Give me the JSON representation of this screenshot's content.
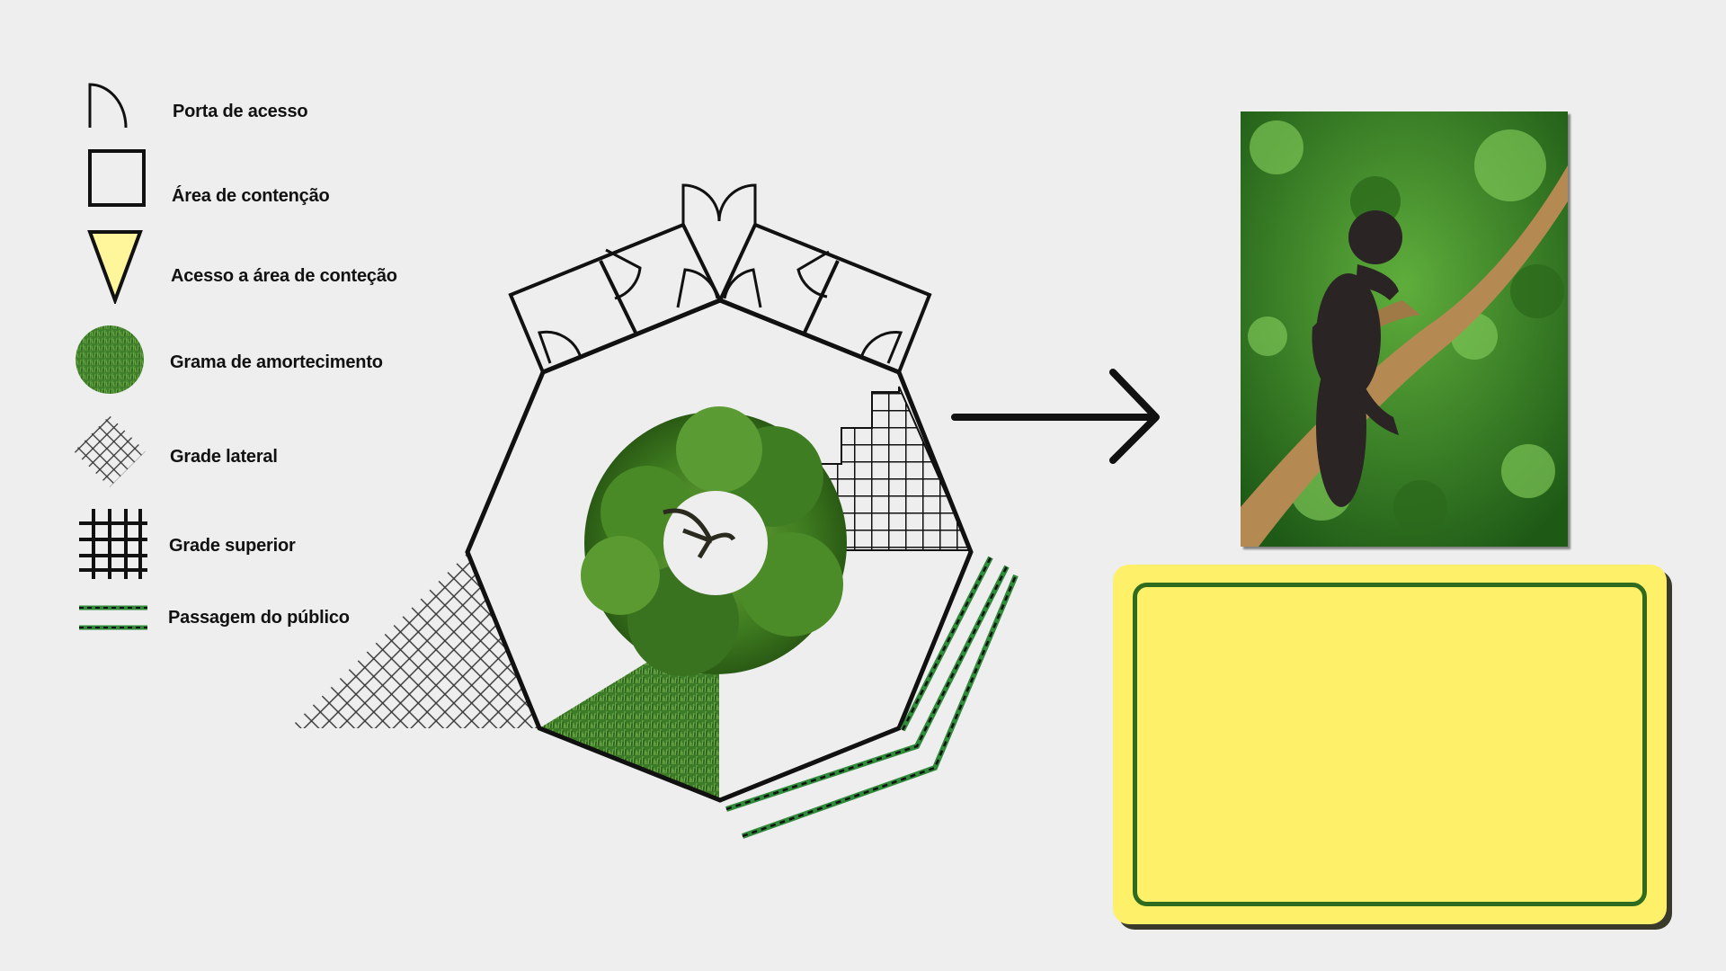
{
  "legend": {
    "items": [
      {
        "label": "Porta de acesso",
        "icon": "door-icon"
      },
      {
        "label": "Área de contenção",
        "icon": "square-icon"
      },
      {
        "label": "Acesso a área de conteção",
        "icon": "triangle-icon"
      },
      {
        "label": "Grama de amortecimento",
        "icon": "grass-icon"
      },
      {
        "label": "Grade lateral",
        "icon": "mesh-icon"
      },
      {
        "label": "Grade superior",
        "icon": "grid-icon"
      },
      {
        "label": "Passagem do público",
        "icon": "path-icon"
      }
    ]
  },
  "colors": {
    "background": "#eeeeee",
    "accent_yellow": "#fff06a",
    "accent_green": "#2e6b1f",
    "grass_green": "#3f7e2a",
    "triangle_yellow": "#fff59a"
  }
}
